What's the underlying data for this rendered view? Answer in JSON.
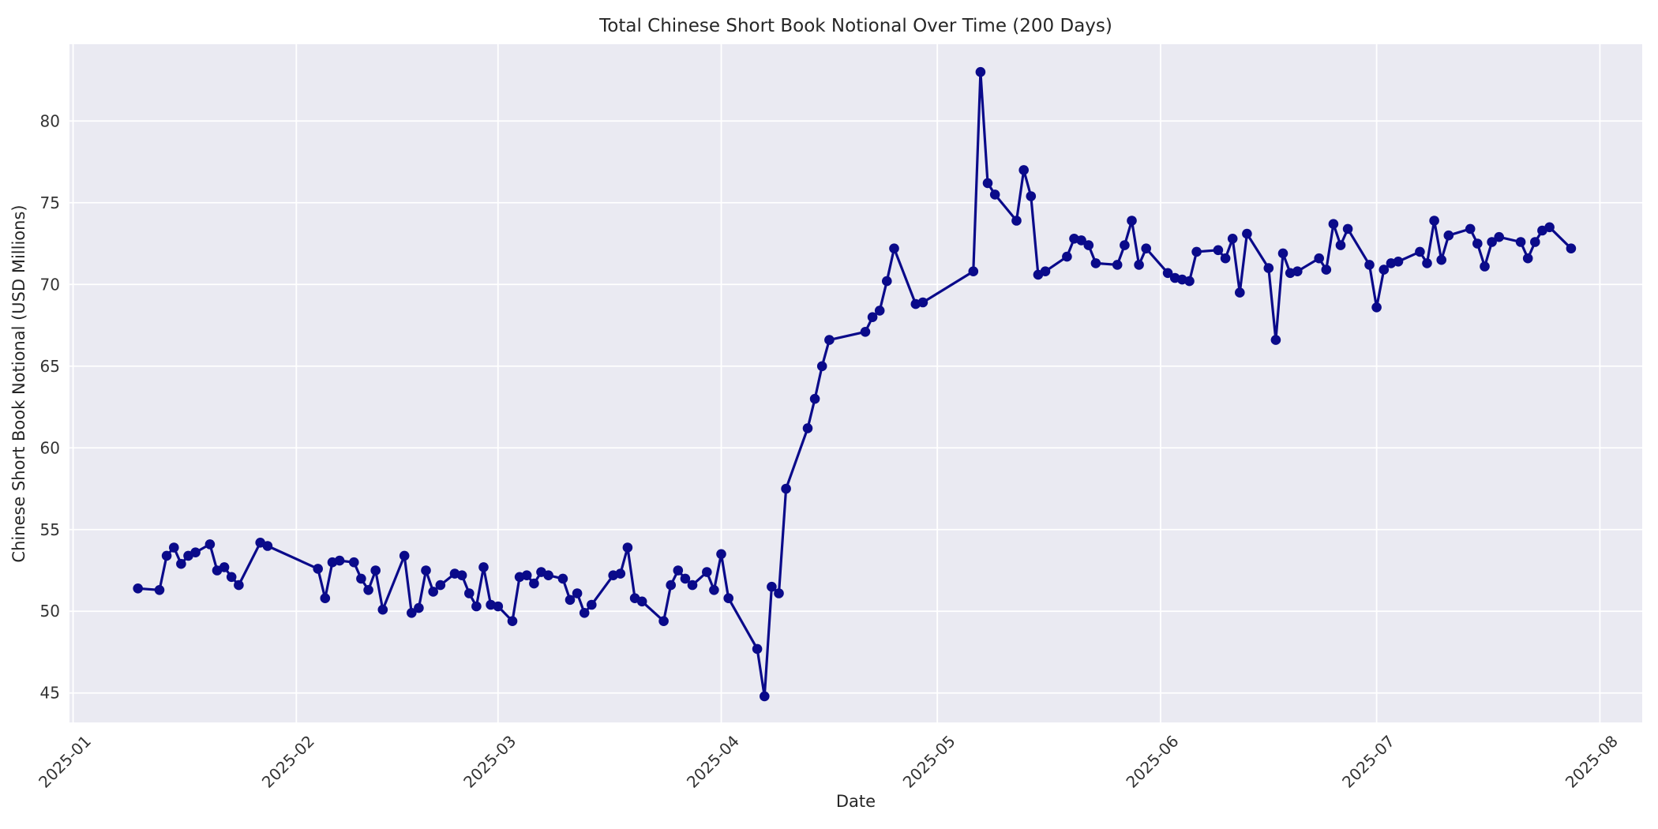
{
  "figure": {
    "title": "Total Chinese Short Book Notional Over Time (200 Days)",
    "background_color": "#ffffff"
  },
  "axes": {
    "xlabel": "Date",
    "ylabel": "Chinese Short Book Notional (USD Millions)",
    "plot_background_color": "#eaeaf2",
    "grid_color": "#ffffff",
    "y_tick_labels": [
      "45",
      "50",
      "55",
      "60",
      "65",
      "70",
      "75",
      "80"
    ],
    "x_tick_labels": [
      "2025-01",
      "2025-02",
      "2025-03",
      "2025-04",
      "2025-05",
      "2025-06",
      "2025-07",
      "2025-08"
    ]
  },
  "chart_data": {
    "type": "line",
    "title": "Total Chinese Short Book Notional Over Time (200 Days)",
    "xlabel": "Date",
    "ylabel": "Chinese Short Book Notional (USD Millions)",
    "grid": true,
    "legend_position": "none",
    "line_color": "#0a0a8a",
    "marker": "circle",
    "xlim": [
      "2024-12-31T12:00:00Z",
      "2025-08-06T21:00:00Z"
    ],
    "ylim": [
      43.2,
      84.7
    ],
    "y_ticks": [
      45,
      50,
      55,
      60,
      65,
      70,
      75,
      80
    ],
    "x_ticks": [
      {
        "label": "2025-01",
        "date": "2025-01-01"
      },
      {
        "label": "2025-02",
        "date": "2025-02-01"
      },
      {
        "label": "2025-03",
        "date": "2025-03-01"
      },
      {
        "label": "2025-04",
        "date": "2025-04-01"
      },
      {
        "label": "2025-05",
        "date": "2025-05-01"
      },
      {
        "label": "2025-06",
        "date": "2025-06-01"
      },
      {
        "label": "2025-07",
        "date": "2025-07-01"
      },
      {
        "label": "2025-08",
        "date": "2025-08-01"
      }
    ],
    "series": [
      {
        "name": "Chinese Short Book Notional",
        "color": "#0a0a8a",
        "points": [
          {
            "date": "2025-01-10",
            "value": 51.4
          },
          {
            "date": "2025-01-13",
            "value": 51.3
          },
          {
            "date": "2025-01-14",
            "value": 53.4
          },
          {
            "date": "2025-01-15",
            "value": 53.9
          },
          {
            "date": "2025-01-16",
            "value": 52.9
          },
          {
            "date": "2025-01-17",
            "value": 53.4
          },
          {
            "date": "2025-01-18",
            "value": 53.6
          },
          {
            "date": "2025-01-20",
            "value": 54.1
          },
          {
            "date": "2025-01-21",
            "value": 52.5
          },
          {
            "date": "2025-01-22",
            "value": 52.7
          },
          {
            "date": "2025-01-23",
            "value": 52.1
          },
          {
            "date": "2025-01-24",
            "value": 51.6
          },
          {
            "date": "2025-01-27",
            "value": 54.2
          },
          {
            "date": "2025-01-28",
            "value": 54.0
          },
          {
            "date": "2025-02-04",
            "value": 52.6
          },
          {
            "date": "2025-02-05",
            "value": 50.8
          },
          {
            "date": "2025-02-06",
            "value": 53.0
          },
          {
            "date": "2025-02-07",
            "value": 53.1
          },
          {
            "date": "2025-02-09",
            "value": 53.0
          },
          {
            "date": "2025-02-10",
            "value": 52.0
          },
          {
            "date": "2025-02-11",
            "value": 51.3
          },
          {
            "date": "2025-02-12",
            "value": 52.5
          },
          {
            "date": "2025-02-13",
            "value": 50.1
          },
          {
            "date": "2025-02-16",
            "value": 53.4
          },
          {
            "date": "2025-02-17",
            "value": 49.9
          },
          {
            "date": "2025-02-18",
            "value": 50.2
          },
          {
            "date": "2025-02-19",
            "value": 52.5
          },
          {
            "date": "2025-02-20",
            "value": 51.2
          },
          {
            "date": "2025-02-21",
            "value": 51.6
          },
          {
            "date": "2025-02-23",
            "value": 52.3
          },
          {
            "date": "2025-02-24",
            "value": 52.2
          },
          {
            "date": "2025-02-25",
            "value": 51.1
          },
          {
            "date": "2025-02-26",
            "value": 50.3
          },
          {
            "date": "2025-02-27",
            "value": 52.7
          },
          {
            "date": "2025-02-28",
            "value": 50.4
          },
          {
            "date": "2025-03-01",
            "value": 50.3
          },
          {
            "date": "2025-03-03",
            "value": 49.4
          },
          {
            "date": "2025-03-04",
            "value": 52.1
          },
          {
            "date": "2025-03-05",
            "value": 52.2
          },
          {
            "date": "2025-03-06",
            "value": 51.7
          },
          {
            "date": "2025-03-07",
            "value": 52.4
          },
          {
            "date": "2025-03-08",
            "value": 52.2
          },
          {
            "date": "2025-03-10",
            "value": 52.0
          },
          {
            "date": "2025-03-11",
            "value": 50.7
          },
          {
            "date": "2025-03-12",
            "value": 51.1
          },
          {
            "date": "2025-03-13",
            "value": 49.9
          },
          {
            "date": "2025-03-14",
            "value": 50.4
          },
          {
            "date": "2025-03-17",
            "value": 52.2
          },
          {
            "date": "2025-03-18",
            "value": 52.3
          },
          {
            "date": "2025-03-19",
            "value": 53.9
          },
          {
            "date": "2025-03-20",
            "value": 50.8
          },
          {
            "date": "2025-03-21",
            "value": 50.6
          },
          {
            "date": "2025-03-24",
            "value": 49.4
          },
          {
            "date": "2025-03-25",
            "value": 51.6
          },
          {
            "date": "2025-03-26",
            "value": 52.5
          },
          {
            "date": "2025-03-27",
            "value": 52.0
          },
          {
            "date": "2025-03-28",
            "value": 51.6
          },
          {
            "date": "2025-03-30",
            "value": 52.4
          },
          {
            "date": "2025-03-31",
            "value": 51.3
          },
          {
            "date": "2025-04-01",
            "value": 53.5
          },
          {
            "date": "2025-04-02",
            "value": 50.8
          },
          {
            "date": "2025-04-06",
            "value": 47.7
          },
          {
            "date": "2025-04-07",
            "value": 44.8
          },
          {
            "date": "2025-04-08",
            "value": 51.5
          },
          {
            "date": "2025-04-09",
            "value": 51.1
          },
          {
            "date": "2025-04-10",
            "value": 57.5
          },
          {
            "date": "2025-04-13",
            "value": 61.2
          },
          {
            "date": "2025-04-14",
            "value": 63.0
          },
          {
            "date": "2025-04-15",
            "value": 65.0
          },
          {
            "date": "2025-04-16",
            "value": 66.6
          },
          {
            "date": "2025-04-21",
            "value": 67.1
          },
          {
            "date": "2025-04-22",
            "value": 68.0
          },
          {
            "date": "2025-04-23",
            "value": 68.4
          },
          {
            "date": "2025-04-24",
            "value": 70.2
          },
          {
            "date": "2025-04-25",
            "value": 72.2
          },
          {
            "date": "2025-04-28",
            "value": 68.8
          },
          {
            "date": "2025-04-29",
            "value": 68.9
          },
          {
            "date": "2025-05-06",
            "value": 70.8
          },
          {
            "date": "2025-05-07",
            "value": 83.0
          },
          {
            "date": "2025-05-08",
            "value": 76.2
          },
          {
            "date": "2025-05-09",
            "value": 75.5
          },
          {
            "date": "2025-05-12",
            "value": 73.9
          },
          {
            "date": "2025-05-13",
            "value": 77.0
          },
          {
            "date": "2025-05-14",
            "value": 75.4
          },
          {
            "date": "2025-05-15",
            "value": 70.6
          },
          {
            "date": "2025-05-16",
            "value": 70.8
          },
          {
            "date": "2025-05-19",
            "value": 71.7
          },
          {
            "date": "2025-05-20",
            "value": 72.8
          },
          {
            "date": "2025-05-21",
            "value": 72.7
          },
          {
            "date": "2025-05-22",
            "value": 72.4
          },
          {
            "date": "2025-05-23",
            "value": 71.3
          },
          {
            "date": "2025-05-26",
            "value": 71.2
          },
          {
            "date": "2025-05-27",
            "value": 72.4
          },
          {
            "date": "2025-05-28",
            "value": 73.9
          },
          {
            "date": "2025-05-29",
            "value": 71.2
          },
          {
            "date": "2025-05-30",
            "value": 72.2
          },
          {
            "date": "2025-06-02",
            "value": 70.7
          },
          {
            "date": "2025-06-03",
            "value": 70.4
          },
          {
            "date": "2025-06-04",
            "value": 70.3
          },
          {
            "date": "2025-06-05",
            "value": 70.2
          },
          {
            "date": "2025-06-06",
            "value": 72.0
          },
          {
            "date": "2025-06-09",
            "value": 72.1
          },
          {
            "date": "2025-06-10",
            "value": 71.6
          },
          {
            "date": "2025-06-11",
            "value": 72.8
          },
          {
            "date": "2025-06-12",
            "value": 69.5
          },
          {
            "date": "2025-06-13",
            "value": 73.1
          },
          {
            "date": "2025-06-16",
            "value": 71.0
          },
          {
            "date": "2025-06-17",
            "value": 66.6
          },
          {
            "date": "2025-06-18",
            "value": 71.9
          },
          {
            "date": "2025-06-19",
            "value": 70.7
          },
          {
            "date": "2025-06-20",
            "value": 70.8
          },
          {
            "date": "2025-06-23",
            "value": 71.6
          },
          {
            "date": "2025-06-24",
            "value": 70.9
          },
          {
            "date": "2025-06-25",
            "value": 73.7
          },
          {
            "date": "2025-06-26",
            "value": 72.4
          },
          {
            "date": "2025-06-27",
            "value": 73.4
          },
          {
            "date": "2025-06-30",
            "value": 71.2
          },
          {
            "date": "2025-07-01",
            "value": 68.6
          },
          {
            "date": "2025-07-02",
            "value": 70.9
          },
          {
            "date": "2025-07-03",
            "value": 71.3
          },
          {
            "date": "2025-07-04",
            "value": 71.4
          },
          {
            "date": "2025-07-07",
            "value": 72.0
          },
          {
            "date": "2025-07-08",
            "value": 71.3
          },
          {
            "date": "2025-07-09",
            "value": 73.9
          },
          {
            "date": "2025-07-10",
            "value": 71.5
          },
          {
            "date": "2025-07-11",
            "value": 73.0
          },
          {
            "date": "2025-07-14",
            "value": 73.4
          },
          {
            "date": "2025-07-15",
            "value": 72.5
          },
          {
            "date": "2025-07-16",
            "value": 71.1
          },
          {
            "date": "2025-07-17",
            "value": 72.6
          },
          {
            "date": "2025-07-18",
            "value": 72.9
          },
          {
            "date": "2025-07-21",
            "value": 72.6
          },
          {
            "date": "2025-07-22",
            "value": 71.6
          },
          {
            "date": "2025-07-23",
            "value": 72.6
          },
          {
            "date": "2025-07-24",
            "value": 73.3
          },
          {
            "date": "2025-07-25",
            "value": 73.5
          },
          {
            "date": "2025-07-28",
            "value": 72.2
          }
        ]
      }
    ]
  }
}
